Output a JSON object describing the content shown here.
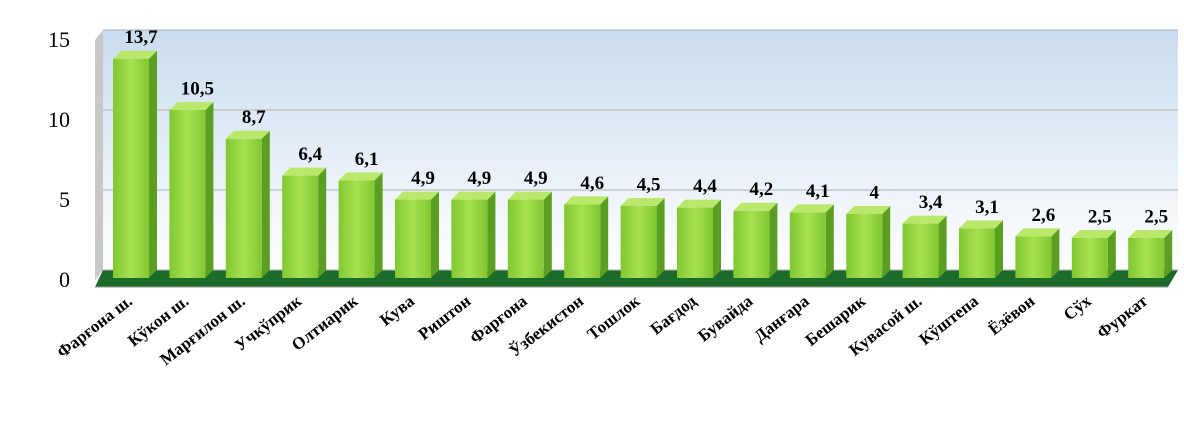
{
  "chart_data": {
    "type": "bar",
    "categories": [
      "Фарғона ш.",
      "Кўкон ш.",
      "Марғилон ш.",
      "Учкўприк",
      "Олтиарик",
      "Кува",
      "Риштон",
      "Фарғона",
      "Ўзбекистон",
      "Тошлок",
      "Бағдод",
      "Бувайда",
      "Данғара",
      "Бешарик",
      "Кувасой ш.",
      "Кўштепа",
      "Ёзёвон",
      "Сўх",
      "Фуркат"
    ],
    "values": [
      13.7,
      10.5,
      8.7,
      6.4,
      6.1,
      4.9,
      4.9,
      4.9,
      4.6,
      4.5,
      4.4,
      4.2,
      4.1,
      4,
      3.4,
      3.1,
      2.6,
      2.5,
      2.5
    ],
    "value_labels": [
      "13,7",
      "10,5",
      "8,7",
      "6,4",
      "6,1",
      "4,9",
      "4,9",
      "4,9",
      "4,6",
      "4,5",
      "4,4",
      "4,2",
      "4,1",
      "4",
      "3,4",
      "3,1",
      "2,6",
      "2,5",
      "2,5"
    ],
    "color": "#8fcf3c",
    "ylim": [
      0,
      15
    ],
    "yticks": [
      0,
      5,
      10,
      15
    ],
    "grid": true
  }
}
